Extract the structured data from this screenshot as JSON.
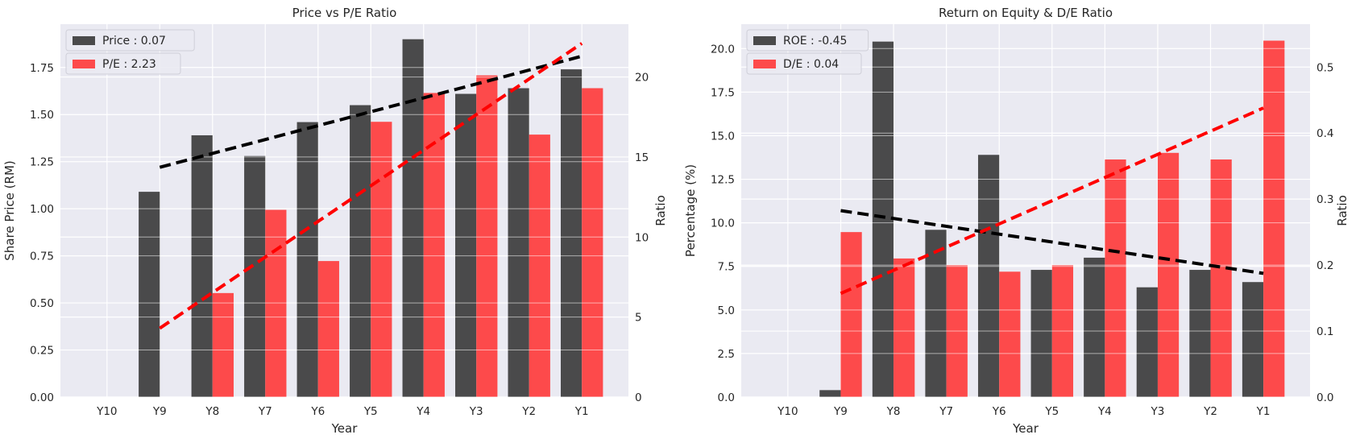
{
  "chart_data": [
    {
      "type": "bar",
      "title": "Price vs P/E Ratio",
      "xlabel": "Year",
      "ylabel": "Share Price (RM)",
      "y2label": "Ratio",
      "categories": [
        "Y10",
        "Y9",
        "Y8",
        "Y7",
        "Y6",
        "Y5",
        "Y4",
        "Y3",
        "Y2",
        "Y1"
      ],
      "ylim": [
        0,
        1.98
      ],
      "y2lim": [
        0,
        23.3
      ],
      "yticks": [
        "0.00",
        "0.25",
        "0.50",
        "0.75",
        "1.00",
        "1.25",
        "1.50",
        "1.75"
      ],
      "y2ticks": [
        "0",
        "5",
        "10",
        "15",
        "20"
      ],
      "grid": true,
      "legend_position": "top-left",
      "series": [
        {
          "name": "Price : 0.07",
          "axis": "left",
          "color": "#333333",
          "values": [
            null,
            1.09,
            1.39,
            1.28,
            1.46,
            1.55,
            1.9,
            1.61,
            1.64,
            1.74
          ]
        },
        {
          "name": "P/E : 2.23",
          "axis": "right",
          "color": "#ff3333",
          "values": [
            null,
            null,
            6.5,
            11.7,
            8.5,
            17.2,
            19.0,
            20.1,
            16.4,
            19.3
          ]
        }
      ],
      "trendlines": [
        {
          "axis": "left",
          "color": "#000000",
          "from_category": "Y9",
          "to_category": "Y1",
          "start": 1.22,
          "end": 1.81
        },
        {
          "axis": "right",
          "color": "#ff0000",
          "from_category": "Y9",
          "to_category": "Y1",
          "start": 4.3,
          "end": 22.1
        }
      ]
    },
    {
      "type": "bar",
      "title": "Return on Equity & D/E Ratio",
      "xlabel": "Year",
      "ylabel": "Percentage (%)",
      "y2label": "Ratio",
      "categories": [
        "Y10",
        "Y9",
        "Y8",
        "Y7",
        "Y6",
        "Y5",
        "Y4",
        "Y3",
        "Y2",
        "Y1"
      ],
      "ylim": [
        0,
        21.4
      ],
      "y2lim": [
        0,
        0.565
      ],
      "yticks": [
        "0.0",
        "2.5",
        "5.0",
        "7.5",
        "10.0",
        "12.5",
        "15.0",
        "17.5",
        "20.0"
      ],
      "y2ticks": [
        "0.0",
        "0.1",
        "0.2",
        "0.3",
        "0.4",
        "0.5"
      ],
      "grid": true,
      "legend_position": "top-left",
      "series": [
        {
          "name": "ROE : -0.45",
          "axis": "left",
          "color": "#333333",
          "values": [
            null,
            0.4,
            20.4,
            9.6,
            13.9,
            7.3,
            8.0,
            6.3,
            7.3,
            6.6
          ]
        },
        {
          "name": "D/E : 0.04",
          "axis": "right",
          "color": "#ff3333",
          "values": [
            null,
            0.25,
            0.21,
            0.2,
            0.19,
            0.2,
            0.36,
            0.37,
            0.36,
            0.54
          ]
        }
      ],
      "trendlines": [
        {
          "axis": "left",
          "color": "#000000",
          "from_category": "Y9",
          "to_category": "Y1",
          "start": 10.7,
          "end": 7.1
        },
        {
          "axis": "right",
          "color": "#ff0000",
          "from_category": "Y9",
          "to_category": "Y1",
          "start": 0.157,
          "end": 0.438
        }
      ]
    }
  ]
}
